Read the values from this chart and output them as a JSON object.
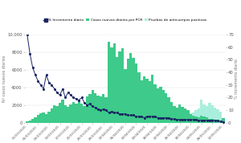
{
  "legend_labels": [
    "% Incremento diario",
    "Casos nuevos diarios por PCR",
    "Pruebas de anticuerpos positivas"
  ],
  "bar_color_pcr": "#3dca8a",
  "bar_color_ab": "#aaeedd",
  "line_color": "#1a2464",
  "ylim_left": [
    0,
    10000
  ],
  "ylim_right": [
    0,
    70
  ],
  "ylabel_left": "Nº casos nuevos diarios",
  "ylabel_right": "% Incremento diario",
  "pcr_cases_values": [
    200,
    300,
    400,
    600,
    900,
    1100,
    1200,
    1000,
    1300,
    1600,
    2000,
    1900,
    2300,
    2600,
    2000,
    1800,
    2100,
    2400,
    2200,
    2500,
    2200,
    1900,
    3000,
    3300,
    3700,
    3400,
    3100,
    3000,
    3300,
    2900,
    9200,
    8600,
    9000,
    7500,
    8100,
    8500,
    6100,
    7300,
    7900,
    7400,
    6700,
    5700,
    4800,
    5300,
    5000,
    4700,
    5500,
    4400,
    3900,
    4100,
    3700,
    3400,
    2900,
    2400,
    1900,
    1700,
    2100,
    1800,
    1600,
    1400,
    1000,
    850,
    680,
    580,
    780,
    680,
    580,
    480,
    430,
    380,
    340,
    280,
    539
  ],
  "ab_cases_values": [
    0,
    0,
    0,
    0,
    0,
    0,
    0,
    0,
    0,
    0,
    0,
    0,
    0,
    0,
    0,
    0,
    0,
    0,
    0,
    0,
    0,
    0,
    0,
    0,
    0,
    0,
    0,
    0,
    0,
    0,
    0,
    0,
    0,
    0,
    0,
    0,
    0,
    0,
    0,
    0,
    0,
    0,
    0,
    0,
    0,
    0,
    0,
    0,
    0,
    0,
    0,
    0,
    0,
    700,
    800,
    1000,
    1300,
    1500,
    1200,
    1000,
    1100,
    1200,
    1400,
    1600,
    2600,
    2100,
    1900,
    2300,
    2000,
    1700,
    1500,
    1300,
    550
  ],
  "pct_increment": [
    70,
    55,
    44,
    38,
    33,
    30,
    27,
    38,
    32,
    30,
    27,
    24,
    22,
    27,
    20,
    24,
    22,
    20,
    19,
    18,
    20,
    16,
    14,
    15,
    13,
    12,
    11,
    10,
    11,
    10,
    8,
    9,
    8,
    8,
    7,
    7,
    7,
    6,
    6,
    6,
    5,
    5,
    5,
    4,
    5,
    5,
    5,
    5,
    4,
    4,
    4,
    4,
    4,
    3,
    3,
    2.5,
    2.5,
    2.5,
    2.5,
    2.5,
    2.5,
    2.5,
    2.5,
    2,
    2,
    2,
    2,
    2,
    2,
    2,
    1.5,
    1.2,
    0.5
  ],
  "xtick_labels": [
    "01/03/2020",
    "05/03/2020",
    "09/03/2020",
    "13/03/2020",
    "17/03/2020",
    "21/03/2020",
    "25/03/2020",
    "29/03/2020",
    "02/04/2020",
    "06/04/2020",
    "10/04/2020",
    "14/04/2020",
    "18/04/2020",
    "22/04/2020",
    "26/04/2020",
    "30/04/2020",
    "04/05/2020",
    "08/05/2020",
    "12/05/2020"
  ],
  "xtick_positions": [
    0,
    4,
    8,
    12,
    16,
    20,
    24,
    28,
    32,
    36,
    40,
    44,
    48,
    52,
    56,
    60,
    64,
    68,
    72
  ],
  "background_color": "#ffffff",
  "grid_color": "#e0e0e0"
}
